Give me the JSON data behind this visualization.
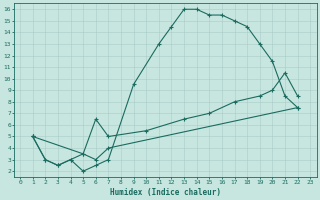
{
  "xlabel": "Humidex (Indice chaleur)",
  "ylabel": "",
  "xlim": [
    -0.5,
    23.5
  ],
  "ylim": [
    1.5,
    16.5
  ],
  "xticks": [
    0,
    1,
    2,
    3,
    4,
    5,
    6,
    7,
    8,
    9,
    10,
    11,
    12,
    13,
    14,
    15,
    16,
    17,
    18,
    19,
    20,
    21,
    22,
    23
  ],
  "yticks": [
    2,
    3,
    4,
    5,
    6,
    7,
    8,
    9,
    10,
    11,
    12,
    13,
    14,
    15,
    16
  ],
  "background_color": "#c8e6e0",
  "grid_color": "#a8ccc8",
  "line_color": "#1a6b60",
  "line1_x": [
    1,
    2,
    3,
    4,
    5,
    6,
    7,
    9,
    11,
    12,
    13,
    14,
    15,
    16,
    17,
    18,
    19,
    20,
    21,
    22
  ],
  "line1_y": [
    5,
    3,
    2.5,
    3,
    2,
    2.5,
    3,
    9.5,
    13,
    14.5,
    16,
    16,
    15.5,
    15.5,
    15,
    14.5,
    13,
    11.5,
    8.5,
    7.5
  ],
  "line2_x": [
    1,
    2,
    3,
    4,
    5,
    6,
    7,
    10,
    13,
    15,
    17,
    19,
    20,
    21,
    22
  ],
  "line2_y": [
    5,
    3,
    2.5,
    3,
    3.5,
    6.5,
    5,
    5.5,
    6.5,
    7,
    8,
    8.5,
    9,
    10.5,
    8.5
  ],
  "line3_x": [
    1,
    5,
    6,
    7,
    22
  ],
  "line3_y": [
    5,
    3.5,
    3,
    4,
    7.5
  ]
}
